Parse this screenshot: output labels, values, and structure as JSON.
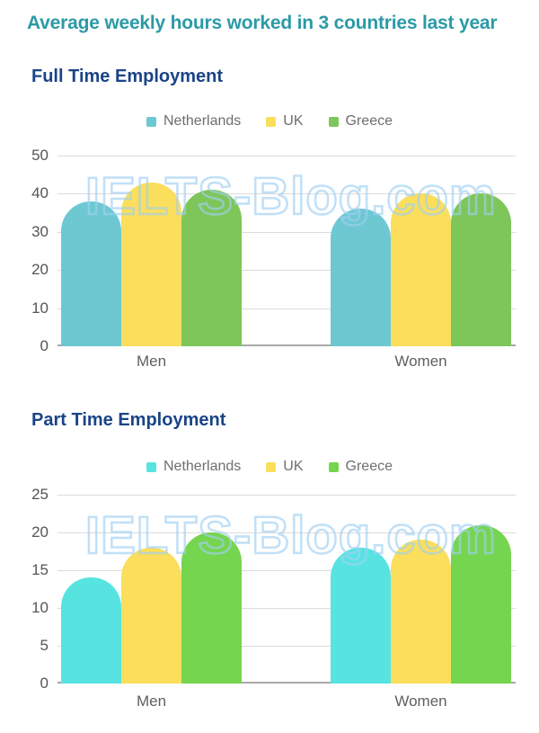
{
  "page": {
    "title": "Average weekly hours worked in 3 countries last year",
    "watermark": "IELTS-Blog.com"
  },
  "colors": {
    "title_teal": "#2b9aa6",
    "chart_title_navy": "#1a4486",
    "axis_text": "#555555",
    "legend_text": "#6e6e6e",
    "gridline": "#dcdcdc",
    "baseline": "#a8a8a8",
    "watermark_blue": "#a0d0f3"
  },
  "chart_data": [
    {
      "type": "bar",
      "title": "Full Time Employment",
      "categories": [
        "Men",
        "Women"
      ],
      "series": [
        {
          "name": "Netherlands",
          "color": "#6EC8D2",
          "values": [
            38,
            36
          ]
        },
        {
          "name": "UK",
          "color": "#FADE5C",
          "values": [
            43,
            40
          ]
        },
        {
          "name": "Greece",
          "color": "#7EC65A",
          "values": [
            41,
            40
          ]
        }
      ],
      "ylabel": "",
      "xlabel": "",
      "ylim": [
        0,
        50
      ],
      "yticks": [
        0,
        10,
        20,
        30,
        40,
        50
      ],
      "grid": true,
      "legend_position": "top-center"
    },
    {
      "type": "bar",
      "title": "Part Time Employment",
      "categories": [
        "Men",
        "Women"
      ],
      "series": [
        {
          "name": "Netherlands",
          "color": "#57E4E1",
          "values": [
            14,
            18
          ]
        },
        {
          "name": "UK",
          "color": "#FADE5C",
          "values": [
            18,
            19
          ]
        },
        {
          "name": "Greece",
          "color": "#75D54F",
          "values": [
            20,
            21
          ]
        }
      ],
      "ylabel": "",
      "xlabel": "",
      "ylim": [
        0,
        25
      ],
      "yticks": [
        0,
        5,
        10,
        15,
        20,
        25
      ],
      "grid": true,
      "legend_position": "top-center"
    }
  ]
}
